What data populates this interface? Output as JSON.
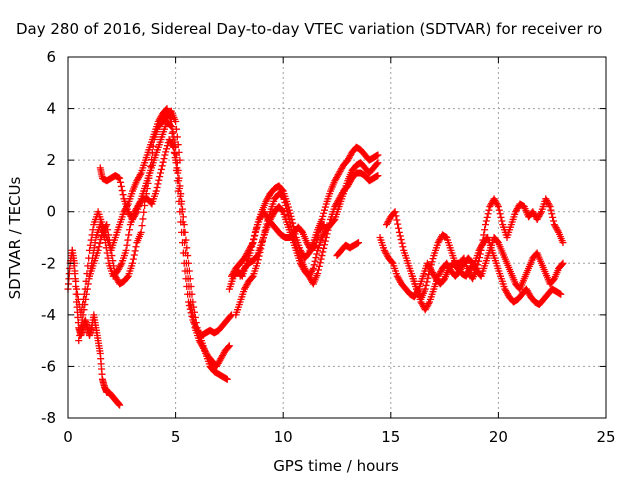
{
  "chart_data": {
    "type": "scatter",
    "title": "Day 280 of 2016, Sidereal Day-to-day VTEC variation (SDTVAR) for receiver ro",
    "xlabel": "GPS time / hours",
    "ylabel": "SDTVAR / TECUs",
    "xlim": [
      0,
      25
    ],
    "ylim": [
      -8,
      6
    ],
    "xticks": [
      0,
      5,
      10,
      15,
      20,
      25
    ],
    "yticks": [
      -8,
      -6,
      -4,
      -2,
      0,
      2,
      4,
      6
    ],
    "grid": true,
    "marker": "+",
    "color": "#ff0000",
    "series": [
      {
        "x": [
          0.0,
          0.1,
          0.2,
          0.3,
          0.4,
          0.5,
          0.6,
          0.7,
          0.8,
          0.9,
          1.0,
          1.1,
          1.2,
          1.3,
          1.4,
          1.5,
          1.6,
          1.7,
          1.8,
          1.9,
          2.0,
          2.1,
          2.2,
          2.3,
          2.4
        ],
        "y": [
          -3.0,
          -2.0,
          -1.5,
          -2.0,
          -3.5,
          -4.5,
          -4.8,
          -4.5,
          -4.2,
          -4.5,
          -4.8,
          -4.5,
          -4.0,
          -4.5,
          -5.0,
          -5.5,
          -6.5,
          -6.8,
          -7.0,
          -7.0,
          -7.1,
          -7.2,
          -7.3,
          -7.4,
          -7.5
        ]
      },
      {
        "x": [
          0.2,
          0.4,
          0.6,
          0.8,
          1.0,
          1.2,
          1.4,
          1.6,
          1.8,
          2.0,
          2.2,
          2.4,
          2.6,
          2.8,
          3.0,
          3.2,
          3.4,
          3.6,
          3.8,
          4.0,
          4.2,
          4.4,
          4.6,
          4.8,
          5.0,
          5.2,
          5.4,
          5.6,
          5.8,
          6.0,
          6.2,
          6.4,
          6.6,
          6.8,
          7.0,
          7.2,
          7.4
        ],
        "y": [
          -1.5,
          -3.0,
          -4.0,
          -3.0,
          -1.5,
          -0.5,
          0.0,
          -0.5,
          -1.0,
          -1.5,
          -1.0,
          -0.5,
          0.0,
          0.3,
          0.8,
          1.2,
          1.5,
          2.0,
          2.5,
          3.0,
          3.5,
          3.8,
          4.0,
          3.5,
          2.5,
          1.0,
          -0.5,
          -2.0,
          -3.5,
          -4.5,
          -5.0,
          -5.5,
          -6.0,
          -6.2,
          -6.3,
          -6.4,
          -6.5
        ]
      },
      {
        "x": [
          1.5,
          1.6,
          1.8,
          2.0,
          2.2,
          2.4,
          2.6,
          2.8,
          3.0,
          3.2,
          3.4,
          3.6,
          3.8,
          4.0,
          4.2,
          4.4,
          4.6,
          4.8,
          5.0,
          5.2,
          5.4,
          5.6,
          5.8,
          6.0,
          6.2,
          6.4,
          6.6,
          6.8,
          7.0,
          7.2,
          7.4,
          7.6
        ],
        "y": [
          1.7,
          1.3,
          1.2,
          1.3,
          1.4,
          1.3,
          0.5,
          0.0,
          -0.3,
          0.0,
          0.5,
          1.0,
          1.5,
          2.0,
          2.5,
          3.0,
          3.5,
          3.3,
          2.0,
          0.0,
          -2.0,
          -3.5,
          -4.2,
          -4.6,
          -4.8,
          -4.7,
          -4.6,
          -4.7,
          -4.6,
          -4.4,
          -4.2,
          -4.0
        ]
      },
      {
        "x": [
          0.5,
          0.7,
          0.9,
          1.1,
          1.3,
          1.5,
          1.7,
          1.9,
          2.1,
          2.3,
          2.5,
          2.7,
          2.9,
          3.1,
          3.3,
          3.5,
          3.7,
          3.9,
          4.1,
          4.3,
          4.5,
          4.7,
          4.9,
          5.1,
          5.3,
          5.5,
          5.7,
          5.9,
          6.1,
          6.3,
          6.5,
          6.7,
          6.9,
          7.1,
          7.3,
          7.5
        ],
        "y": [
          -5.0,
          -4.0,
          -3.0,
          -2.0,
          -1.0,
          -0.5,
          -1.0,
          -2.0,
          -2.5,
          -2.3,
          -2.0,
          -1.5,
          -0.5,
          0.0,
          0.3,
          0.5,
          0.5,
          0.3,
          0.8,
          1.5,
          2.2,
          2.8,
          2.5,
          1.5,
          0.0,
          -2.0,
          -3.5,
          -4.5,
          -5.0,
          -5.3,
          -5.6,
          -5.8,
          -6.0,
          -5.7,
          -5.4,
          -5.2
        ]
      },
      {
        "x": [
          1.0,
          1.2,
          1.4,
          1.6,
          1.8,
          2.0,
          2.2,
          2.4,
          2.6,
          2.8,
          3.0,
          3.2,
          3.4,
          3.6,
          3.8,
          4.0,
          4.2,
          4.4,
          4.6,
          4.8,
          5.0,
          5.2
        ],
        "y": [
          -2.5,
          -2.0,
          -1.5,
          -0.8,
          -0.5,
          -1.5,
          -2.5,
          -2.8,
          -2.7,
          -2.5,
          -2.0,
          -1.2,
          -0.8,
          0.5,
          1.5,
          2.8,
          3.3,
          3.5,
          3.7,
          3.9,
          3.5,
          2.0
        ]
      },
      {
        "x": [
          7.6,
          7.8,
          8.0,
          8.2,
          8.4,
          8.6,
          8.8,
          9.0,
          9.2,
          9.4,
          9.6,
          9.8,
          10.0,
          10.2,
          10.4,
          10.6,
          10.8,
          11.0,
          11.2,
          11.4,
          11.6,
          11.8,
          12.0,
          12.2,
          12.4,
          12.6,
          12.8,
          13.0,
          13.2,
          13.4,
          13.6,
          13.8,
          14.0,
          14.2,
          14.4
        ],
        "y": [
          -2.5,
          -2.2,
          -2.0,
          -1.8,
          -1.5,
          -1.2,
          -0.5,
          0.0,
          0.4,
          0.7,
          0.9,
          1.0,
          0.8,
          0.3,
          -0.3,
          -1.0,
          -1.5,
          -1.8,
          -1.6,
          -1.2,
          -0.7,
          -0.3,
          0.3,
          0.8,
          1.2,
          1.5,
          1.8,
          2.0,
          2.3,
          2.5,
          2.4,
          2.2,
          2.0,
          2.1,
          2.2
        ]
      },
      {
        "x": [
          7.8,
          8.0,
          8.2,
          8.4,
          8.6,
          8.8,
          9.0,
          9.2,
          9.4,
          9.6,
          9.8,
          10.0,
          10.2,
          10.4,
          10.6,
          10.8,
          11.0,
          11.2,
          11.4,
          11.6,
          11.8,
          12.0,
          12.2,
          12.4,
          12.6,
          12.8,
          13.0,
          13.2,
          13.4,
          13.6,
          13.8,
          14.0,
          14.2,
          14.4
        ],
        "y": [
          -4.0,
          -3.5,
          -3.0,
          -2.7,
          -2.5,
          -2.0,
          -1.3,
          -0.6,
          0.0,
          0.5,
          0.7,
          0.6,
          0.0,
          -0.7,
          -1.3,
          -1.8,
          -2.2,
          -2.5,
          -2.8,
          -2.4,
          -1.7,
          -1.0,
          -0.3,
          0.2,
          0.5,
          0.8,
          1.0,
          1.3,
          1.5,
          1.5,
          1.4,
          1.2,
          1.3,
          1.4
        ]
      },
      {
        "x": [
          8.0,
          8.2,
          8.4,
          8.6,
          8.8,
          9.0,
          9.2,
          9.4,
          9.6,
          9.8,
          10.0,
          10.2,
          10.4,
          10.6,
          10.8,
          11.0,
          11.2,
          11.4,
          11.6,
          11.8,
          12.0,
          12.2,
          12.4,
          12.6,
          12.8,
          13.0,
          13.2,
          13.4,
          13.6,
          13.8,
          14.0,
          14.2,
          14.4
        ],
        "y": [
          -2.5,
          -2.2,
          -2.0,
          -1.9,
          -1.7,
          -1.2,
          -0.7,
          -0.3,
          0.0,
          0.2,
          0.0,
          -0.5,
          -1.0,
          -1.5,
          -2.0,
          -2.3,
          -2.5,
          -2.2,
          -1.5,
          -1.0,
          -0.7,
          -0.5,
          -0.3,
          0.2,
          0.7,
          1.2,
          1.6,
          1.8,
          1.9,
          1.7,
          1.5,
          1.7,
          1.9
        ]
      },
      {
        "x": [
          7.5,
          7.7,
          7.9,
          8.1,
          8.3,
          8.5,
          8.7,
          8.9,
          9.1,
          9.3,
          9.5,
          9.7,
          9.9,
          10.1,
          10.3,
          10.5,
          10.7,
          10.9,
          11.1,
          11.3,
          11.5,
          11.7,
          11.9
        ],
        "y": [
          -3.0,
          -2.5,
          -2.3,
          -2.5,
          -2.0,
          -1.5,
          -0.8,
          -0.3,
          0.0,
          -0.3,
          -0.5,
          -0.7,
          -0.9,
          -1.0,
          -1.0,
          -0.8,
          -0.6,
          -0.8,
          -1.2,
          -1.5,
          -1.3,
          -0.7,
          -0.5
        ]
      },
      {
        "x": [
          12.5,
          12.7,
          12.9,
          13.1,
          13.3,
          13.5
        ],
        "y": [
          -1.7,
          -1.5,
          -1.3,
          -1.4,
          -1.3,
          -1.2
        ]
      },
      {
        "x": [
          14.8,
          15.0,
          15.2,
          15.4,
          15.6,
          15.8,
          16.0,
          16.2,
          16.4,
          16.6,
          16.8,
          17.0,
          17.2,
          17.4,
          17.6,
          17.8,
          18.0,
          18.2,
          18.4,
          18.6,
          18.8,
          19.0,
          19.2,
          19.4,
          19.6,
          19.8,
          20.0,
          20.2,
          20.4,
          20.6,
          20.8,
          21.0,
          21.2,
          21.4,
          21.6,
          21.8,
          22.0,
          22.2,
          22.4,
          22.6,
          22.8,
          23.0
        ],
        "y": [
          -0.5,
          -0.2,
          0.0,
          -0.8,
          -1.5,
          -2.0,
          -2.5,
          -3.0,
          -3.4,
          -3.0,
          -2.3,
          -1.7,
          -1.2,
          -0.9,
          -1.0,
          -1.5,
          -2.0,
          -2.0,
          -1.8,
          -2.3,
          -2.6,
          -2.2,
          -1.5,
          -0.5,
          0.2,
          0.5,
          0.2,
          -0.5,
          -1.0,
          -0.5,
          0.0,
          0.3,
          0.2,
          -0.2,
          0.0,
          -0.3,
          0.0,
          0.5,
          0.2,
          -0.5,
          -0.8,
          -1.2
        ]
      },
      {
        "x": [
          14.5,
          14.7,
          14.9,
          15.1,
          15.3,
          15.5,
          15.7,
          15.9,
          16.1,
          16.3,
          16.5,
          16.7,
          16.9,
          17.1,
          17.3,
          17.5,
          17.7,
          17.9,
          18.1,
          18.3,
          18.5,
          18.7,
          18.9,
          19.1,
          19.3,
          19.5,
          19.7,
          19.9,
          20.1,
          20.3,
          20.5,
          20.7,
          20.9,
          21.1,
          21.3,
          21.5,
          21.7,
          21.9,
          22.1,
          22.3,
          22.5,
          22.7,
          22.9
        ],
        "y": [
          -1.0,
          -1.5,
          -1.8,
          -2.0,
          -2.5,
          -2.8,
          -3.0,
          -3.2,
          -3.3,
          -3.0,
          -2.5,
          -2.0,
          -2.3,
          -2.6,
          -2.8,
          -2.6,
          -2.2,
          -2.0,
          -2.2,
          -2.4,
          -2.5,
          -2.2,
          -2.0,
          -1.5,
          -1.2,
          -1.0,
          -1.5,
          -2.0,
          -2.5,
          -3.0,
          -3.3,
          -3.5,
          -3.4,
          -3.2,
          -3.0,
          -3.3,
          -3.5,
          -3.6,
          -3.4,
          -3.2,
          -3.0,
          -3.1,
          -3.2
        ]
      },
      {
        "x": [
          16.0,
          16.2,
          16.4,
          16.6,
          16.8,
          17.0,
          17.2,
          17.4,
          17.6,
          17.8,
          18.0,
          18.2,
          18.4,
          18.6,
          18.8,
          19.0,
          19.2,
          19.4,
          19.6,
          19.8,
          20.0,
          20.2,
          20.4,
          20.6,
          20.8,
          21.0,
          21.2,
          21.4,
          21.6,
          21.8,
          22.0,
          22.2,
          22.4,
          22.6,
          22.8,
          23.0
        ],
        "y": [
          -2.5,
          -3.0,
          -3.5,
          -3.8,
          -3.5,
          -3.0,
          -2.5,
          -2.2,
          -2.0,
          -2.3,
          -2.5,
          -2.3,
          -2.0,
          -1.8,
          -2.0,
          -2.3,
          -2.5,
          -2.0,
          -1.5,
          -1.0,
          -1.2,
          -1.6,
          -2.0,
          -2.4,
          -2.8,
          -3.0,
          -2.6,
          -2.2,
          -1.8,
          -1.6,
          -2.0,
          -2.4,
          -2.8,
          -2.6,
          -2.2,
          -2.0
        ]
      }
    ]
  }
}
